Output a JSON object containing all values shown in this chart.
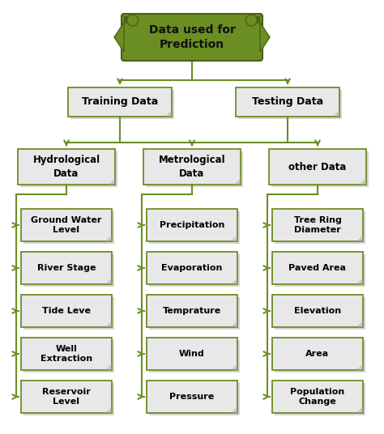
{
  "title": "Data used for\nPrediction",
  "title_color": "#111111",
  "title_bg": "#6b8e23",
  "box_bg": "#e8e8e8",
  "box_edge": "#6b8e23",
  "arrow_color": "#6b8e23",
  "level1": [
    "Training Data",
    "Testing Data"
  ],
  "level2": [
    "Hydrological\nData",
    "Metrological\nData",
    "other Data"
  ],
  "col1": [
    "Ground Water\nLevel",
    "River Stage",
    "Tide Leve",
    "Well\nExtraction",
    "Reservoir\nLevel"
  ],
  "col2": [
    "Precipitation",
    "Evaporation",
    "Temprature",
    "Wind",
    "Pressure"
  ],
  "col3": [
    "Tree Ring\nDiameter",
    "Paved Area",
    "Elevation",
    "Area",
    "Population\nChange"
  ],
  "fig_width": 4.74,
  "fig_height": 5.36,
  "dpi": 100
}
